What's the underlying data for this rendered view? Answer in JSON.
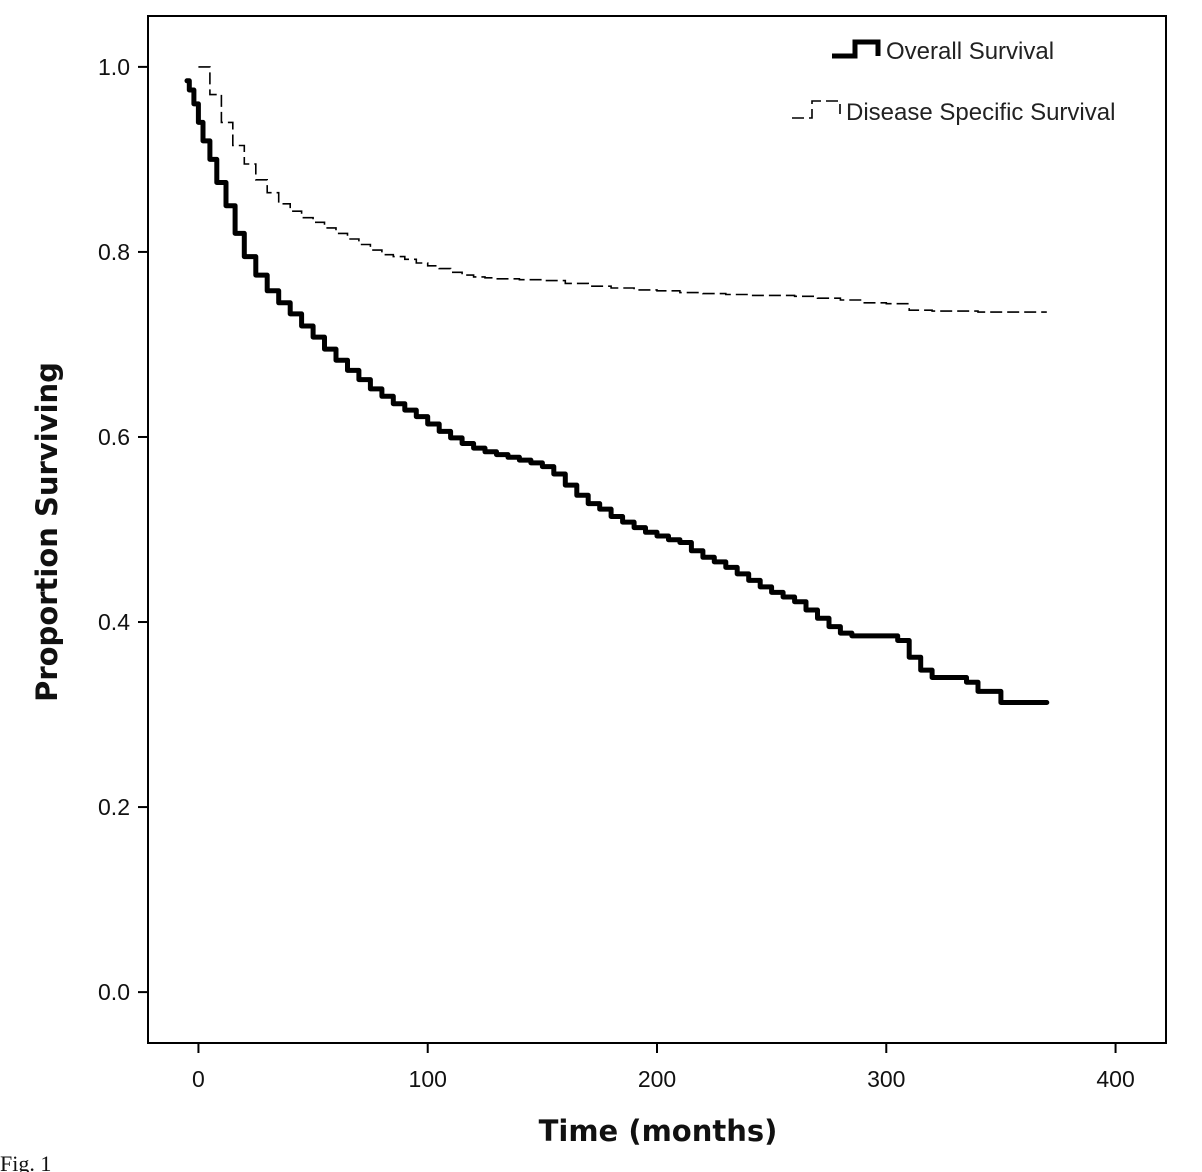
{
  "chart_data": {
    "type": "line",
    "title": "",
    "xlabel": "Time (months)",
    "ylabel": "Proportion Surviving",
    "xlim": [
      -22,
      422
    ],
    "ylim": [
      -0.055,
      1.055
    ],
    "xticks": [
      0,
      100,
      200,
      300,
      400
    ],
    "yticks": [
      0.0,
      0.2,
      0.4,
      0.6,
      0.8,
      1.0
    ],
    "xtick_labels": [
      "0",
      "100",
      "200",
      "300",
      "400"
    ],
    "ytick_labels": [
      "0.0",
      "0.2",
      "0.4",
      "0.6",
      "0.8",
      "1.0"
    ],
    "grid": false,
    "legend_position": "top-right",
    "caption": "Fig. 1",
    "series": [
      {
        "name": "Overall Survival",
        "style": "solid-thick",
        "color": "#000000",
        "x": [
          -5,
          -4,
          -2,
          0,
          2,
          5,
          8,
          12,
          16,
          20,
          25,
          30,
          35,
          40,
          45,
          50,
          55,
          60,
          65,
          70,
          75,
          80,
          85,
          90,
          95,
          100,
          105,
          110,
          115,
          120,
          125,
          130,
          135,
          140,
          145,
          150,
          155,
          160,
          165,
          170,
          175,
          180,
          185,
          190,
          195,
          200,
          205,
          210,
          215,
          220,
          225,
          230,
          235,
          240,
          245,
          250,
          255,
          260,
          265,
          270,
          275,
          280,
          285,
          290,
          295,
          300,
          305,
          310,
          315,
          320,
          330,
          335,
          340,
          345,
          350,
          360,
          370
        ],
        "y": [
          0.985,
          0.975,
          0.96,
          0.94,
          0.92,
          0.9,
          0.875,
          0.85,
          0.82,
          0.795,
          0.775,
          0.758,
          0.745,
          0.733,
          0.72,
          0.708,
          0.695,
          0.683,
          0.672,
          0.662,
          0.652,
          0.644,
          0.636,
          0.629,
          0.622,
          0.614,
          0.606,
          0.599,
          0.593,
          0.588,
          0.584,
          0.581,
          0.578,
          0.575,
          0.572,
          0.568,
          0.56,
          0.548,
          0.537,
          0.528,
          0.522,
          0.514,
          0.508,
          0.502,
          0.497,
          0.493,
          0.489,
          0.486,
          0.477,
          0.47,
          0.465,
          0.459,
          0.452,
          0.445,
          0.438,
          0.432,
          0.427,
          0.422,
          0.413,
          0.404,
          0.395,
          0.388,
          0.385,
          0.385,
          0.385,
          0.385,
          0.38,
          0.362,
          0.348,
          0.34,
          0.34,
          0.335,
          0.325,
          0.325,
          0.313,
          0.313,
          0.313
        ]
      },
      {
        "name": "Disease Specific Survival",
        "style": "dashed",
        "color": "#000000",
        "x": [
          0,
          5,
          10,
          15,
          20,
          25,
          30,
          35,
          40,
          45,
          50,
          55,
          60,
          65,
          70,
          75,
          80,
          85,
          90,
          95,
          100,
          105,
          110,
          115,
          120,
          125,
          130,
          140,
          150,
          160,
          170,
          180,
          190,
          200,
          210,
          220,
          230,
          240,
          250,
          260,
          270,
          280,
          290,
          300,
          310,
          320,
          330,
          340,
          350,
          360,
          370
        ],
        "y": [
          1.0,
          0.97,
          0.94,
          0.915,
          0.895,
          0.878,
          0.864,
          0.852,
          0.844,
          0.837,
          0.832,
          0.826,
          0.82,
          0.814,
          0.808,
          0.802,
          0.797,
          0.795,
          0.792,
          0.788,
          0.785,
          0.782,
          0.778,
          0.775,
          0.773,
          0.772,
          0.771,
          0.77,
          0.769,
          0.766,
          0.763,
          0.761,
          0.759,
          0.758,
          0.756,
          0.755,
          0.754,
          0.753,
          0.753,
          0.752,
          0.75,
          0.748,
          0.745,
          0.744,
          0.737,
          0.736,
          0.736,
          0.735,
          0.735,
          0.735,
          0.735
        ]
      }
    ]
  }
}
